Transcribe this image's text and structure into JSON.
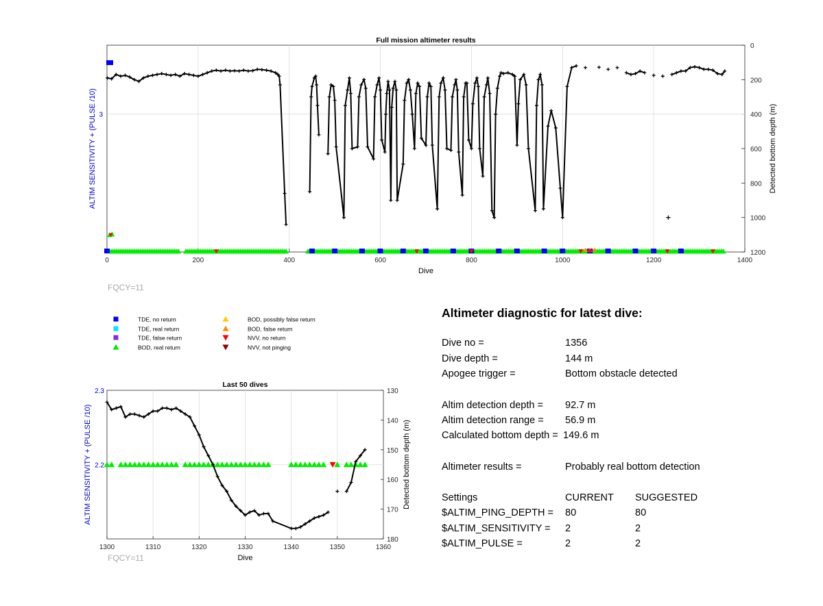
{
  "colors": {
    "tde_no_return": "#0000ff",
    "tde_real_return": "#00e5ff",
    "tde_false_return": "#8a2be2",
    "bod_real_return": "#00ee00",
    "bod_possibly_false": "#ffcc00",
    "bod_false_return": "#ff8c00",
    "nvv_no_return": "#ff0000",
    "nvv_not_pinging": "#8b0000",
    "left_axis": "#0000cc",
    "depth_line": "#000000"
  },
  "legend": {
    "items": [
      {
        "label": "TDE, no return",
        "marker": "square",
        "color": "#0000ff"
      },
      {
        "label": "TDE, real return",
        "marker": "square",
        "color": "#00e5ff"
      },
      {
        "label": "TDE, false return",
        "marker": "square",
        "color": "#8a2be2"
      },
      {
        "label": "BOD, real return",
        "marker": "triangle-up",
        "color": "#00ee00"
      },
      {
        "label": "BOD, possibly false return",
        "marker": "triangle-up",
        "color": "#ffcc00"
      },
      {
        "label": "BOD, false return",
        "marker": "triangle-up",
        "color": "#ff8c00"
      },
      {
        "label": "NVV, no return",
        "marker": "triangle-down",
        "color": "#ff0000"
      },
      {
        "label": "NVV, not pinging",
        "marker": "triangle-down",
        "color": "#8b0000"
      }
    ]
  },
  "chart_data": [
    {
      "type": "scatter",
      "title": "Full mission altimeter results",
      "xlabel": "Dive",
      "ylabel_left": "ALTIM SENSITIVITY + (PULSE /10)",
      "ylabel_right": "Detected bottom depth (m)",
      "footnote": "FQCY=11",
      "xlim": [
        0,
        1400
      ],
      "xticks": [
        "0",
        "200",
        "400",
        "600",
        "800",
        "1000",
        "1200",
        "1400"
      ],
      "left_yticks": [
        "3"
      ],
      "right_ylim": [
        0,
        1200
      ],
      "right_yticks": [
        "0",
        "200",
        "400",
        "600",
        "800",
        "1000",
        "1200"
      ],
      "right_inverted": true,
      "grid": true,
      "depth_series": [
        [
          1,
          190
        ],
        [
          10,
          195
        ],
        [
          20,
          170
        ],
        [
          30,
          180
        ],
        [
          40,
          175
        ],
        [
          50,
          185
        ],
        [
          60,
          200
        ],
        [
          70,
          210
        ],
        [
          80,
          190
        ],
        [
          90,
          180
        ],
        [
          100,
          175
        ],
        [
          110,
          170
        ],
        [
          120,
          165
        ],
        [
          130,
          170
        ],
        [
          140,
          175
        ],
        [
          150,
          170
        ],
        [
          160,
          180
        ],
        [
          170,
          165
        ],
        [
          180,
          170
        ],
        [
          190,
          175
        ],
        [
          200,
          180
        ],
        [
          210,
          170
        ],
        [
          220,
          160
        ],
        [
          230,
          150
        ],
        [
          240,
          145
        ],
        [
          250,
          150
        ],
        [
          260,
          145
        ],
        [
          270,
          150
        ],
        [
          280,
          148
        ],
        [
          290,
          150
        ],
        [
          300,
          145
        ],
        [
          310,
          150
        ],
        [
          320,
          148
        ],
        [
          330,
          140
        ],
        [
          340,
          142
        ],
        [
          350,
          145
        ],
        [
          360,
          150
        ],
        [
          370,
          160
        ],
        [
          375,
          170
        ],
        [
          378,
          180
        ],
        [
          380,
          230
        ],
        [
          390,
          860
        ],
        [
          393,
          1040
        ],
        [
          445,
          850
        ],
        [
          448,
          300
        ],
        [
          450,
          240
        ],
        [
          455,
          190
        ],
        [
          458,
          180
        ],
        [
          460,
          230
        ],
        [
          462,
          350
        ],
        [
          465,
          520
        ],
        [
          485,
          630
        ],
        [
          488,
          300
        ],
        [
          492,
          230
        ],
        [
          497,
          240
        ],
        [
          500,
          320
        ],
        [
          503,
          590
        ],
        [
          520,
          1000
        ],
        [
          523,
          350
        ],
        [
          528,
          260
        ],
        [
          532,
          190
        ],
        [
          535,
          280
        ],
        [
          538,
          600
        ],
        [
          550,
          590
        ],
        [
          553,
          300
        ],
        [
          558,
          230
        ],
        [
          564,
          200
        ],
        [
          568,
          250
        ],
        [
          572,
          590
        ],
        [
          585,
          660
        ],
        [
          588,
          300
        ],
        [
          593,
          230
        ],
        [
          597,
          190
        ],
        [
          600,
          260
        ],
        [
          603,
          550
        ],
        [
          610,
          620
        ],
        [
          612,
          400
        ],
        [
          614,
          280
        ],
        [
          617,
          210
        ],
        [
          620,
          260
        ],
        [
          623,
          900
        ],
        [
          625,
          360
        ],
        [
          628,
          250
        ],
        [
          632,
          210
        ],
        [
          635,
          260
        ],
        [
          637,
          900
        ],
        [
          650,
          690
        ],
        [
          653,
          320
        ],
        [
          658,
          220
        ],
        [
          662,
          200
        ],
        [
          666,
          260
        ],
        [
          670,
          400
        ],
        [
          675,
          600
        ],
        [
          678,
          280
        ],
        [
          682,
          220
        ],
        [
          686,
          240
        ],
        [
          690,
          540
        ],
        [
          700,
          580
        ],
        [
          703,
          300
        ],
        [
          707,
          220
        ],
        [
          711,
          240
        ],
        [
          714,
          580
        ],
        [
          725,
          950
        ],
        [
          729,
          300
        ],
        [
          733,
          220
        ],
        [
          738,
          190
        ],
        [
          742,
          260
        ],
        [
          746,
          600
        ],
        [
          755,
          610
        ],
        [
          758,
          300
        ],
        [
          763,
          230
        ],
        [
          766,
          200
        ],
        [
          769,
          260
        ],
        [
          772,
          620
        ],
        [
          780,
          870
        ],
        [
          783,
          300
        ],
        [
          787,
          220
        ],
        [
          790,
          220
        ],
        [
          794,
          550
        ],
        [
          800,
          600
        ],
        [
          803,
          340
        ],
        [
          808,
          220
        ],
        [
          812,
          190
        ],
        [
          815,
          240
        ],
        [
          818,
          600
        ],
        [
          825,
          760
        ],
        [
          828,
          300
        ],
        [
          833,
          230
        ],
        [
          836,
          190
        ],
        [
          840,
          280
        ],
        [
          845,
          960
        ],
        [
          850,
          1000
        ],
        [
          853,
          400
        ],
        [
          857,
          250
        ],
        [
          862,
          180
        ],
        [
          865,
          160
        ],
        [
          870,
          165
        ],
        [
          880,
          160
        ],
        [
          890,
          170
        ],
        [
          895,
          180
        ],
        [
          900,
          580
        ],
        [
          903,
          340
        ],
        [
          907,
          200
        ],
        [
          915,
          170
        ],
        [
          920,
          230
        ],
        [
          925,
          600
        ],
        [
          940,
          960
        ],
        [
          943,
          350
        ],
        [
          947,
          200
        ],
        [
          951,
          170
        ],
        [
          955,
          230
        ],
        [
          958,
          950
        ],
        [
          968,
          470
        ],
        [
          975,
          380
        ],
        [
          985,
          480
        ],
        [
          995,
          830
        ],
        [
          1000,
          1000
        ],
        [
          1010,
          240
        ],
        [
          1020,
          130
        ],
        [
          1030,
          120
        ],
        [
          1050,
          130
        ],
        [
          1080,
          128
        ],
        [
          1100,
          140
        ],
        [
          1120,
          130
        ],
        [
          1140,
          160
        ],
        [
          1150,
          170
        ],
        [
          1160,
          165
        ],
        [
          1170,
          150
        ],
        [
          1180,
          160
        ],
        [
          1200,
          175
        ],
        [
          1220,
          180
        ],
        [
          1240,
          170
        ],
        [
          1250,
          160
        ],
        [
          1260,
          150
        ],
        [
          1270,
          150
        ],
        [
          1280,
          130
        ],
        [
          1290,
          125
        ],
        [
          1300,
          130
        ],
        [
          1310,
          140
        ],
        [
          1320,
          140
        ],
        [
          1330,
          145
        ],
        [
          1340,
          165
        ],
        [
          1350,
          170
        ],
        [
          1356,
          150
        ]
      ],
      "bod_real_return_row": {
        "y_label": "2.2"
      },
      "tde_no_return_dives": [
        0,
        450,
        500,
        560,
        600,
        650,
        700,
        760,
        800,
        860,
        900,
        960,
        1000,
        1060,
        1100,
        1160,
        1200,
        1260
      ],
      "nvv_no_return_dives": [
        240,
        680,
        800,
        1040,
        1060,
        1230,
        1330
      ],
      "bod_false_dives": [
        1050,
        1060,
        1070
      ]
    },
    {
      "type": "scatter",
      "title": "Last 50 dives",
      "xlabel": "Dive",
      "ylabel_left": "ALTIM SENSITIVITY + (PULSE /10)",
      "ylabel_right": "Detected bottom depth (m)",
      "footnote": "FQCY=11",
      "xlim": [
        1300,
        1360
      ],
      "xticks": [
        "1300",
        "1310",
        "1320",
        "1330",
        "1340",
        "1350",
        "1360"
      ],
      "left_ylim": [
        2.1,
        2.3
      ],
      "left_yticks": [
        "2.3",
        "2.2"
      ],
      "right_ylim": [
        130,
        180
      ],
      "right_yticks": [
        "130",
        "140",
        "150",
        "160",
        "170",
        "180"
      ],
      "right_inverted": true,
      "grid": true,
      "depth_series": [
        [
          1300,
          134
        ],
        [
          1301,
          136.5
        ],
        [
          1302,
          136
        ],
        [
          1303,
          135.5
        ],
        [
          1304,
          139
        ],
        [
          1305,
          138
        ],
        [
          1306,
          138
        ],
        [
          1307,
          138.5
        ],
        [
          1308,
          139
        ],
        [
          1309,
          138
        ],
        [
          1310,
          137
        ],
        [
          1311,
          137
        ],
        [
          1312,
          136
        ],
        [
          1313,
          136
        ],
        [
          1314,
          136.5
        ],
        [
          1315,
          136
        ],
        [
          1316,
          137
        ],
        [
          1317,
          138
        ],
        [
          1318,
          139
        ],
        [
          1319,
          142
        ],
        [
          1320,
          145
        ],
        [
          1321,
          149
        ],
        [
          1322,
          152
        ],
        [
          1323,
          155
        ],
        [
          1324,
          159
        ],
        [
          1325,
          162
        ],
        [
          1326,
          164
        ],
        [
          1327,
          167
        ],
        [
          1328,
          169
        ],
        [
          1329,
          170.5
        ],
        [
          1330,
          172
        ],
        [
          1331,
          171
        ],
        [
          1332,
          170.5
        ],
        [
          1333,
          172
        ],
        [
          1334,
          171.5
        ],
        [
          1335,
          171.5
        ],
        [
          1336,
          174
        ],
        [
          1340,
          176.5
        ],
        [
          1341,
          176.5
        ],
        [
          1342,
          176
        ],
        [
          1343,
          175
        ],
        [
          1344,
          174
        ],
        [
          1345,
          173
        ],
        [
          1346,
          172.5
        ],
        [
          1347,
          172
        ],
        [
          1348,
          171
        ],
        [
          1350,
          164
        ],
        [
          1352,
          164
        ],
        [
          1353,
          161
        ],
        [
          1354,
          154
        ],
        [
          1355,
          152
        ],
        [
          1356,
          150
        ]
      ],
      "bod_real_return_dives": [
        1300,
        1301,
        1303,
        1304,
        1305,
        1306,
        1307,
        1308,
        1309,
        1310,
        1311,
        1312,
        1313,
        1314,
        1315,
        1317,
        1318,
        1319,
        1320,
        1321,
        1322,
        1323,
        1324,
        1325,
        1326,
        1327,
        1328,
        1329,
        1330,
        1331,
        1332,
        1333,
        1334,
        1335,
        1340,
        1341,
        1342,
        1343,
        1344,
        1345,
        1346,
        1347,
        1350,
        1352,
        1353,
        1354,
        1355,
        1356
      ],
      "nvv_no_return_dives": [
        1349
      ],
      "marker_level": 2.2
    }
  ],
  "diagnostic": {
    "title": "Altimeter diagnostic for latest dive:",
    "rows": [
      {
        "label": "Dive no =",
        "value": "1356"
      },
      {
        "label": "Dive depth =",
        "value": "144 m"
      },
      {
        "label": "Apogee trigger =",
        "value": "Bottom obstacle detected"
      }
    ],
    "detection": [
      {
        "label": "Altim detection depth =",
        "value": "92.7 m"
      },
      {
        "label": "Altim detection range =",
        "value": "56.9 m"
      },
      {
        "label": "Calculated bottom depth =",
        "value": "149.6 m"
      }
    ],
    "results": {
      "label": "Altimeter results =",
      "value": "Probably real bottom detection"
    },
    "settings": {
      "header": [
        "Settings",
        "CURRENT",
        "SUGGESTED"
      ],
      "rows": [
        {
          "name": "$ALTIM_PING_DEPTH =",
          "current": "80",
          "suggested": "80"
        },
        {
          "name": "$ALTIM_SENSITIVITY =",
          "current": "2",
          "suggested": "2"
        },
        {
          "name": "$ALTIM_PULSE =",
          "current": "2",
          "suggested": "2"
        }
      ]
    }
  }
}
